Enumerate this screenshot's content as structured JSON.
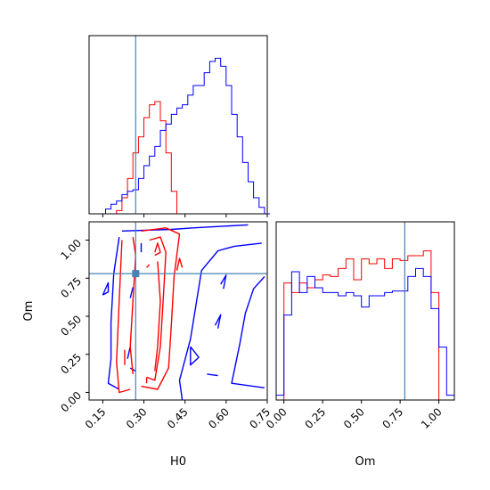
{
  "chart_data": {
    "type": "corner",
    "parameters": [
      "H0",
      "Om"
    ],
    "truth": {
      "H0": 0.27,
      "Om": 0.78,
      "color": "#4682b4"
    },
    "colors": {
      "red_sample": "#ff0000",
      "blue_sample": "#0000ff",
      "truth": "#4682b4"
    },
    "panels": [
      {
        "id": "hist-H0",
        "type": "histogram",
        "xlim": [
          0.1,
          0.75
        ],
        "bin_width": 0.02,
        "series": [
          {
            "color": "#ff0000",
            "x": [
              0.16,
              0.18,
              0.2,
              0.22,
              0.24,
              0.26,
              0.28,
              0.3,
              0.32,
              0.34,
              0.36,
              0.38,
              0.4,
              0.42
            ],
            "values": [
              0.0,
              0.0,
              0.02,
              0.1,
              0.22,
              0.38,
              0.48,
              0.6,
              0.68,
              0.7,
              0.58,
              0.38,
              0.14,
              0.0
            ]
          },
          {
            "color": "#0000ff",
            "x": [
              0.1,
              0.12,
              0.14,
              0.16,
              0.18,
              0.2,
              0.22,
              0.24,
              0.26,
              0.28,
              0.3,
              0.32,
              0.34,
              0.36,
              0.38,
              0.4,
              0.42,
              0.44,
              0.46,
              0.48,
              0.5,
              0.52,
              0.54,
              0.56,
              0.58,
              0.6,
              0.62,
              0.64,
              0.66,
              0.68,
              0.7,
              0.72,
              0.74
            ],
            "values": [
              0.0,
              0.0,
              0.0,
              0.03,
              0.06,
              0.08,
              0.12,
              0.14,
              0.15,
              0.22,
              0.3,
              0.36,
              0.42,
              0.52,
              0.56,
              0.62,
              0.66,
              0.68,
              0.74,
              0.8,
              0.8,
              0.88,
              0.95,
              0.97,
              0.92,
              0.8,
              0.62,
              0.48,
              0.32,
              0.2,
              0.1,
              0.04,
              0.0
            ]
          }
        ]
      },
      {
        "id": "contour-H0-Om",
        "type": "contour",
        "xlabel": "H0",
        "ylabel": "Om",
        "xlim": [
          0.1,
          0.75
        ],
        "ylim": [
          -0.05,
          1.12
        ],
        "xticks": [
          "0.15",
          "0.30",
          "0.45",
          "0.60",
          "0.75"
        ],
        "yticks": [
          "0.00",
          "0.25",
          "0.50",
          "0.75",
          "1.00"
        ]
      },
      {
        "id": "hist-Om",
        "type": "histogram",
        "xlabel": "Om",
        "xlim": [
          -0.05,
          1.1
        ],
        "bin_width": 0.05,
        "xticks": [
          "0.00",
          "0.25",
          "0.50",
          "0.75",
          "1.00"
        ],
        "series": [
          {
            "color": "#ff0000",
            "x": [
              0.0,
              0.05,
              0.1,
              0.15,
              0.2,
              0.25,
              0.3,
              0.35,
              0.4,
              0.45,
              0.5,
              0.55,
              0.6,
              0.65,
              0.7,
              0.75,
              0.8,
              0.85,
              0.9,
              0.95
            ],
            "values": [
              0.73,
              0.67,
              0.73,
              0.7,
              0.75,
              0.78,
              0.77,
              0.82,
              0.88,
              0.75,
              0.88,
              0.85,
              0.88,
              0.82,
              0.88,
              0.87,
              0.9,
              0.9,
              0.93,
              0.67
            ]
          },
          {
            "color": "#0000ff",
            "x": [
              -0.05,
              0.0,
              0.05,
              0.1,
              0.15,
              0.2,
              0.25,
              0.3,
              0.35,
              0.4,
              0.45,
              0.5,
              0.55,
              0.6,
              0.65,
              0.7,
              0.75,
              0.8,
              0.85,
              0.9,
              0.95,
              1.0,
              1.05
            ],
            "values": [
              0.03,
              0.53,
              0.8,
              0.67,
              0.77,
              0.7,
              0.67,
              0.67,
              0.65,
              0.67,
              0.65,
              0.58,
              0.65,
              0.65,
              0.67,
              0.68,
              0.68,
              0.77,
              0.82,
              0.77,
              0.57,
              0.33,
              0.03
            ]
          }
        ]
      }
    ]
  }
}
